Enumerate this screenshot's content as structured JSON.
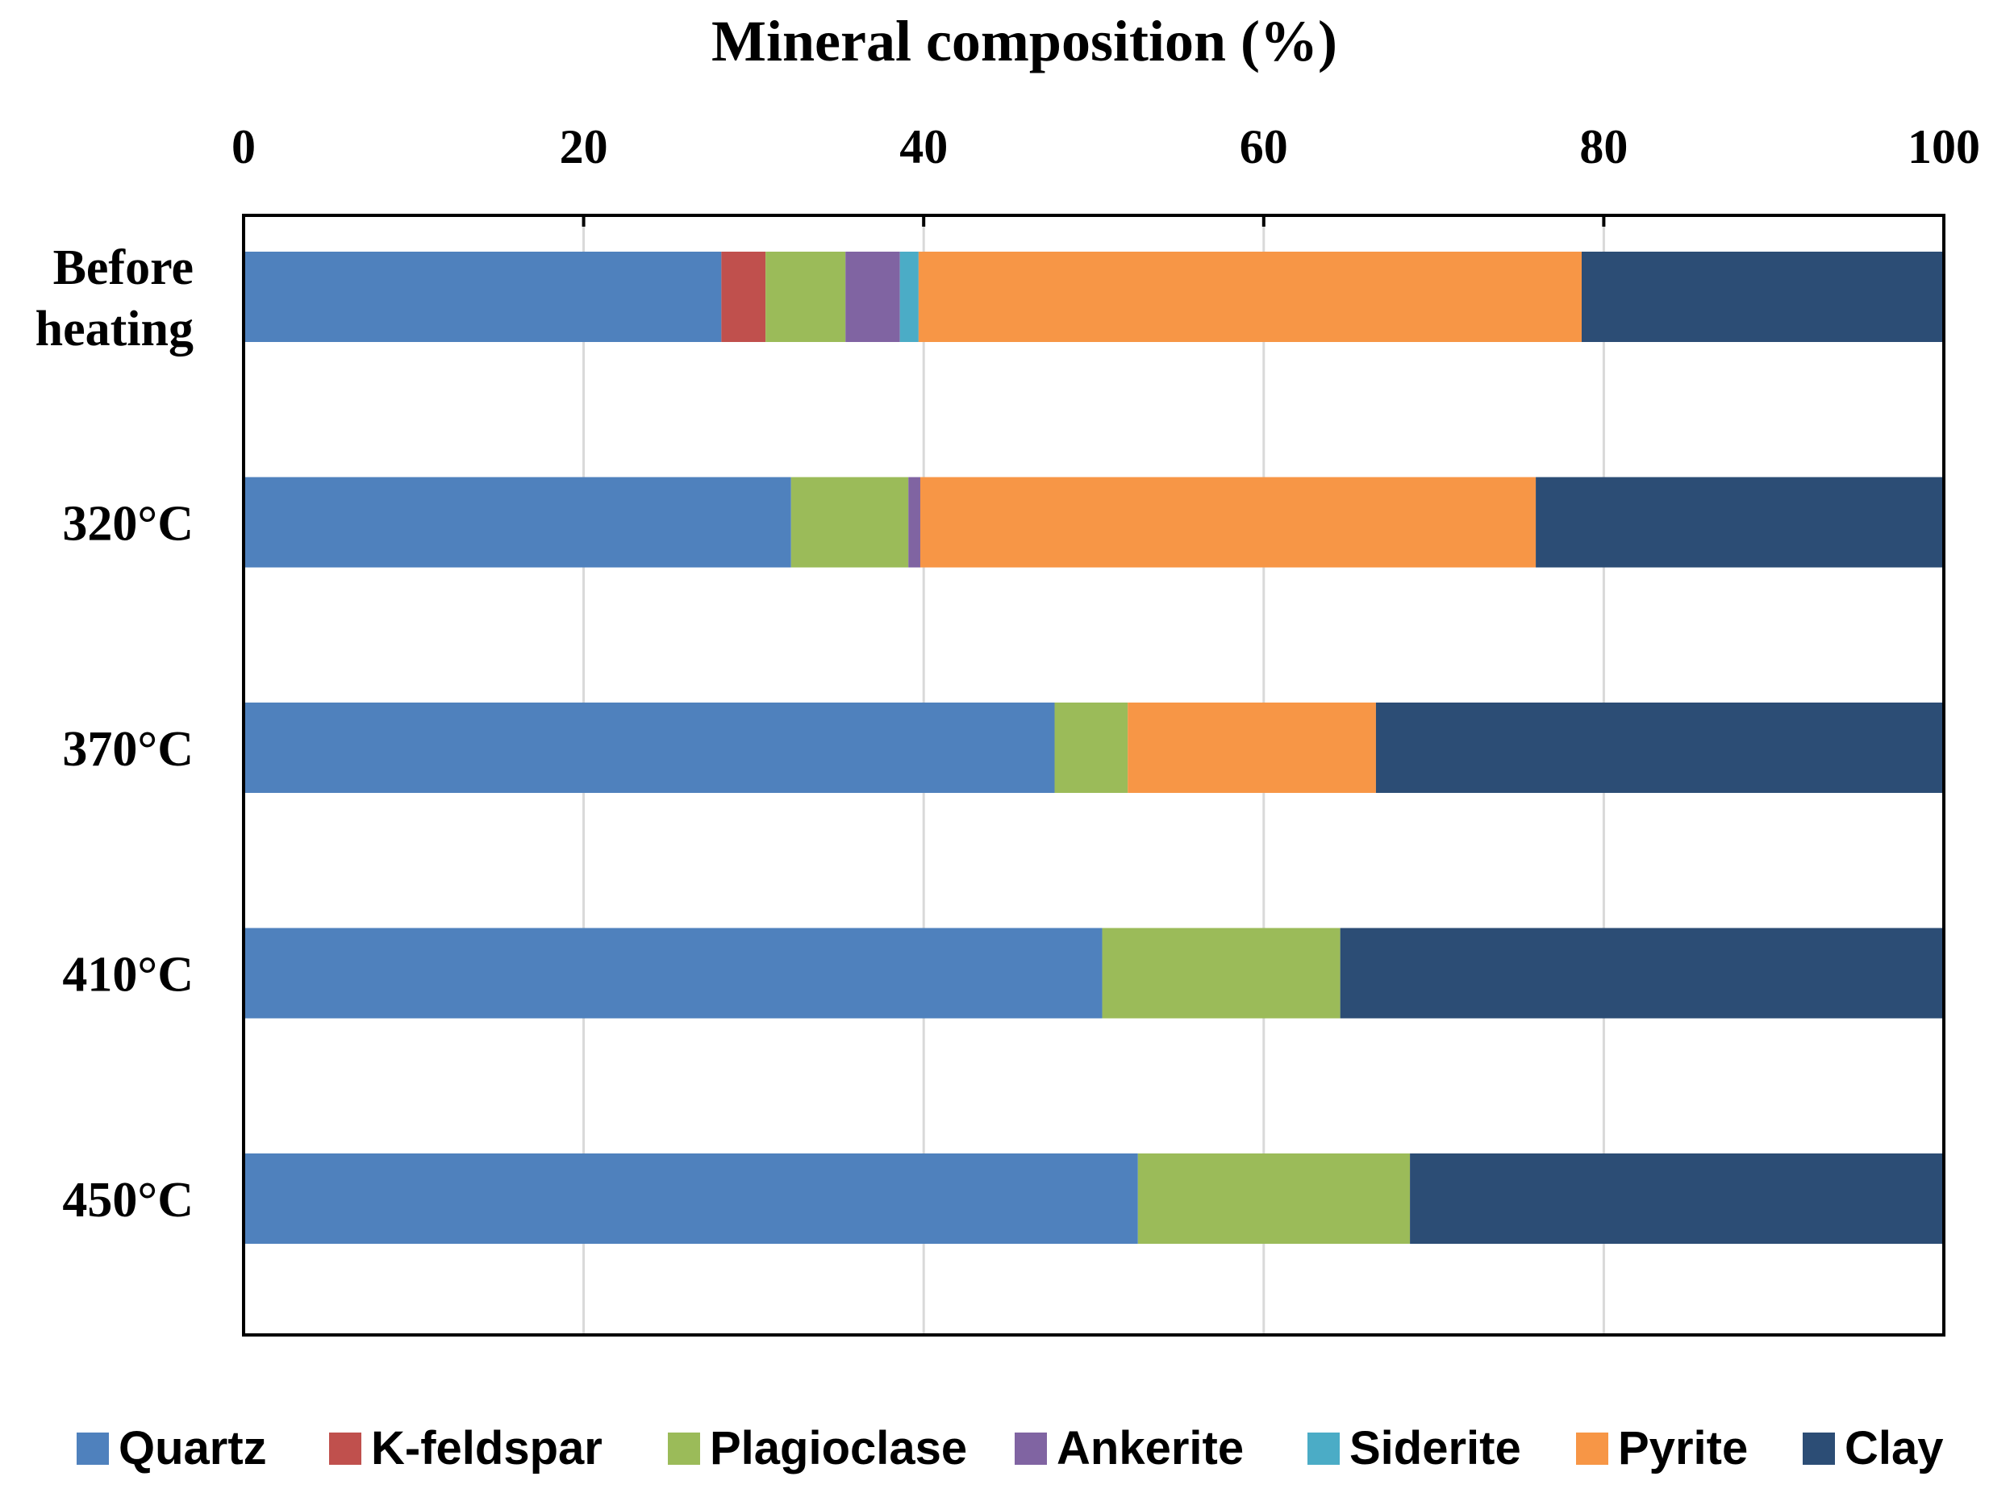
{
  "chart_data": {
    "type": "bar",
    "orientation": "horizontal",
    "stacked": true,
    "title": "Mineral composition (%)",
    "xlabel": "Mineral composition (%)",
    "ylabel": "",
    "xlim": [
      0,
      100
    ],
    "xticks": [
      "0",
      "20",
      "40",
      "60",
      "80",
      "100"
    ],
    "grid": true,
    "legend_position": "bottom",
    "categories": [
      [
        "Before",
        "heating"
      ],
      [
        "320°C"
      ],
      [
        "370°C"
      ],
      [
        "410°C"
      ],
      [
        "450°C"
      ]
    ],
    "series": [
      {
        "name": "Quartz",
        "color": "#4F81BD",
        "values": [
          28.1,
          32.2,
          47.7,
          50.5,
          52.6
        ]
      },
      {
        "name": "K-feldspar",
        "color": "#C0504D",
        "values": [
          2.6,
          0,
          0,
          0,
          0
        ]
      },
      {
        "name": "Plagioclase",
        "color": "#9BBB59",
        "values": [
          4.7,
          6.9,
          4.3,
          14.0,
          16.0
        ]
      },
      {
        "name": "Ankerite",
        "color": "#8064A2",
        "values": [
          3.2,
          0.7,
          0,
          0,
          0
        ]
      },
      {
        "name": "Siderite",
        "color": "#4BACC6",
        "values": [
          1.1,
          0,
          0,
          0,
          0
        ]
      },
      {
        "name": "Pyrite",
        "color": "#F79646",
        "values": [
          39.0,
          36.2,
          14.6,
          0,
          0
        ]
      },
      {
        "name": "Clay",
        "color": "#2C4D75",
        "values": [
          21.3,
          24.0,
          33.4,
          35.5,
          31.4
        ]
      }
    ]
  }
}
